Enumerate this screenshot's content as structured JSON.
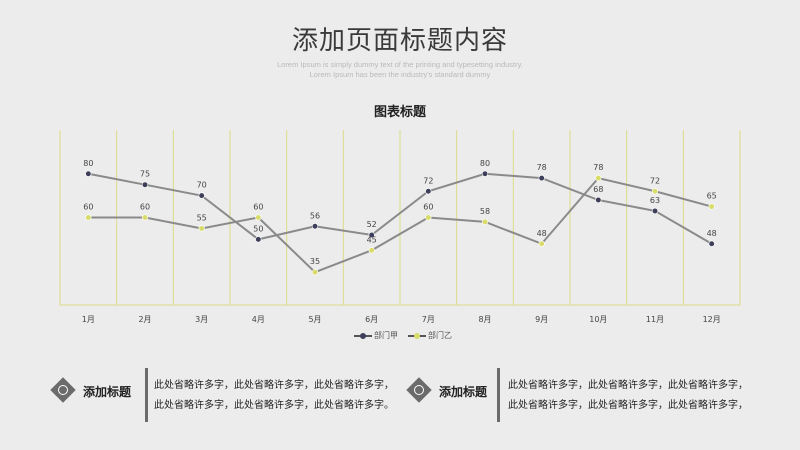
{
  "header": {
    "title": "添加页面标题内容",
    "subtitle_line1": "Lorem Ipsum is simply dummy text of the printing and typesetting industry.",
    "subtitle_line2": "Lorem Ipsum has been the industry's standard dummy"
  },
  "chart_data": {
    "type": "line",
    "title": "图表标题",
    "categories": [
      "1月",
      "2月",
      "3月",
      "4月",
      "5月",
      "6月",
      "7月",
      "8月",
      "9月",
      "10月",
      "11月",
      "12月"
    ],
    "series": [
      {
        "name": "部门甲",
        "color": "#3d3f5a",
        "values": [
          80,
          75,
          70,
          50,
          56,
          52,
          72,
          80,
          78,
          68,
          63,
          48
        ]
      },
      {
        "name": "部门乙",
        "color": "#d9dc6a",
        "values": [
          60,
          60,
          55,
          60,
          35,
          45,
          60,
          58,
          48,
          78,
          72,
          65
        ]
      }
    ],
    "ylim": [
      20,
      100
    ],
    "grid": "vertical",
    "legend": "bottom",
    "line_color": "#8a8a8a"
  },
  "info_blocks": [
    {
      "heading": "添加标题",
      "lines": [
        "此处省略许多字，此处省略许多字，此处省略许多字，",
        "此处省略许多字，此处省略许多字，此处省略许多字。"
      ]
    },
    {
      "heading": "添加标题",
      "lines": [
        "此处省略许多字，此处省略许多字，此处省略许多字，",
        "此处省略许多字，此处省略许多字，此处省略许多字，"
      ]
    }
  ]
}
